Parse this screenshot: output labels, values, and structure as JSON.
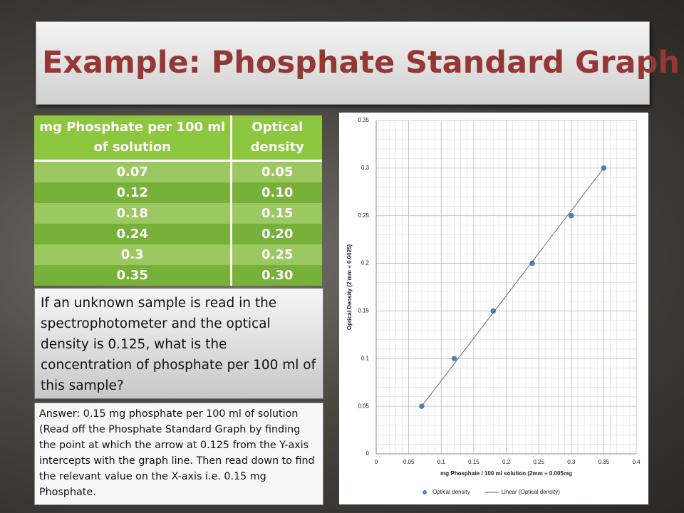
{
  "slide": {
    "title": "Example: Phosphate Standard Graph",
    "table": {
      "header": [
        "mg Phosphate per 100 ml of solution",
        "Optical density"
      ],
      "rows": [
        [
          "0.07",
          "0.05"
        ],
        [
          "0.12",
          "0.10"
        ],
        [
          "0.18",
          "0.15"
        ],
        [
          "0.24",
          "0.20"
        ],
        [
          "0.3",
          "0.25"
        ],
        [
          "0.35",
          "0.30"
        ]
      ]
    },
    "question": "If an unknown sample is read in the spectrophotometer and the optical density is 0.125, what is the concentration of phosphate per 100 ml of this sample?",
    "answer": "Answer: 0.15 mg phosphate per 100 ml of solution (Read off the Phosphate Standard Graph by finding the point at which the arrow at 0.125 from the Y-axis intercepts with the graph line. Then read down to find the relevant value on the X-axis i.e. 0.15 mg Phosphate."
  },
  "chart_data": {
    "type": "scatter",
    "x_label": "mg Phosphate / 100 ml solution (2mm ≡ 0.005mg",
    "y_label": "Optical Density  (2 mm ≡ 0.0025)",
    "series": [
      {
        "name": "Optical density",
        "color": "#4f81bd",
        "x": [
          0.07,
          0.12,
          0.18,
          0.24,
          0.3,
          0.35
        ],
        "values": [
          0.05,
          0.1,
          0.15,
          0.2,
          0.25,
          0.3
        ]
      },
      {
        "name": "Linear (Optical density)",
        "color": "#5a5a5a",
        "x": [
          0.07,
          0.35
        ],
        "values": [
          0.05,
          0.3
        ]
      }
    ],
    "xlim": [
      0,
      0.4
    ],
    "xticks": [
      0,
      0.05,
      0.1,
      0.15,
      0.2,
      0.25,
      0.3,
      0.35,
      0.4
    ],
    "ylim": [
      0,
      0.35
    ],
    "yticks": [
      0,
      0.05,
      0.1,
      0.15,
      0.2,
      0.25,
      0.3,
      0.35
    ],
    "grid": true,
    "legend": "bottom"
  }
}
